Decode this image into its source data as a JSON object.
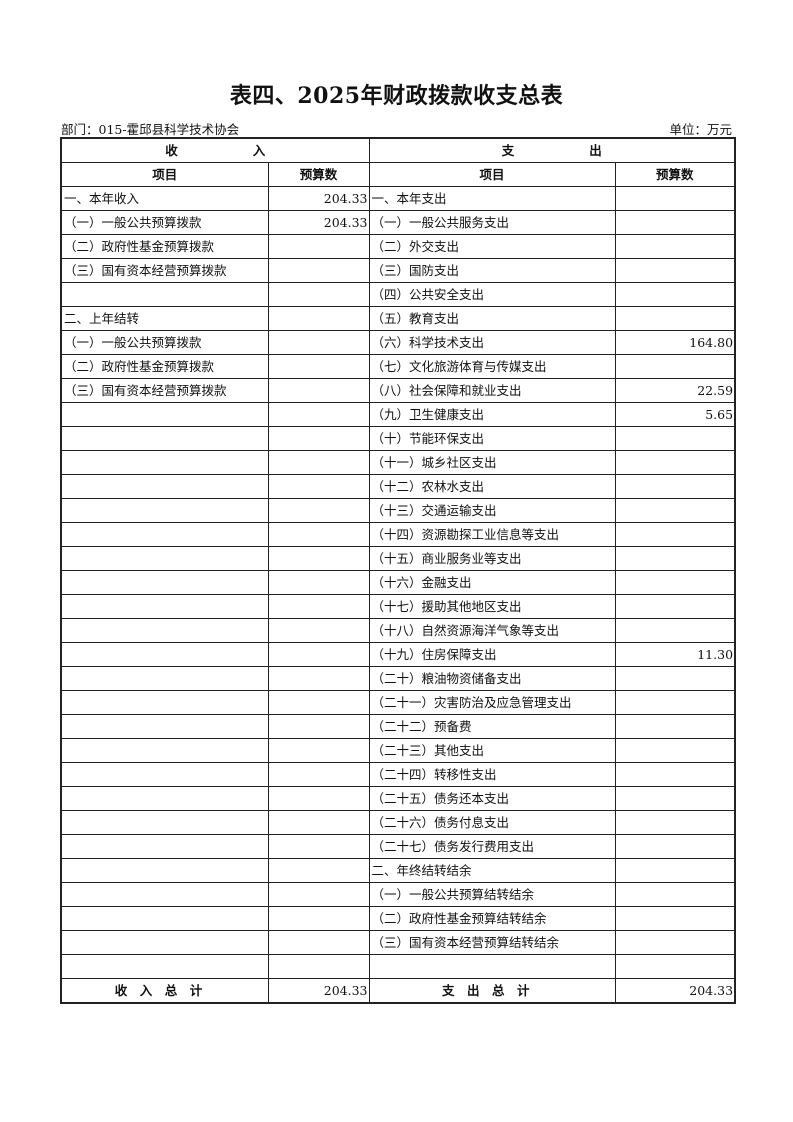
{
  "title": "表四、2025年财政拨款收支总表",
  "department": "部门：015-霍邱县科学技术协会",
  "unit": "单位：万元",
  "header": {
    "income": "收　　　　　　入",
    "expense": "支　　　　　　出",
    "item": "项目",
    "budget": "预算数"
  },
  "rows": [
    {
      "in_item": "一、本年收入",
      "in_val": "204.33",
      "out_item": "一、本年支出",
      "out_val": ""
    },
    {
      "in_item": "（一）一般公共预算拨款",
      "in_val": "204.33",
      "out_item": "（一）一般公共服务支出",
      "out_val": ""
    },
    {
      "in_item": "（二）政府性基金预算拨款",
      "in_val": "",
      "out_item": "（二）外交支出",
      "out_val": ""
    },
    {
      "in_item": "（三）国有资本经营预算拨款",
      "in_val": "",
      "out_item": "（三）国防支出",
      "out_val": ""
    },
    {
      "in_item": "",
      "in_val": "",
      "out_item": "（四）公共安全支出",
      "out_val": ""
    },
    {
      "in_item": "二、上年结转",
      "in_val": "",
      "out_item": "（五）教育支出",
      "out_val": ""
    },
    {
      "in_item": "（一）一般公共预算拨款",
      "in_val": "",
      "out_item": "（六）科学技术支出",
      "out_val": "164.80"
    },
    {
      "in_item": "（二）政府性基金预算拨款",
      "in_val": "",
      "out_item": "（七）文化旅游体育与传媒支出",
      "out_val": ""
    },
    {
      "in_item": "（三）国有资本经营预算拨款",
      "in_val": "",
      "out_item": "（八）社会保障和就业支出",
      "out_val": "22.59"
    },
    {
      "in_item": "",
      "in_val": "",
      "out_item": "（九）卫生健康支出",
      "out_val": "5.65"
    },
    {
      "in_item": "",
      "in_val": "",
      "out_item": "（十）节能环保支出",
      "out_val": ""
    },
    {
      "in_item": "",
      "in_val": "",
      "out_item": "（十一）城乡社区支出",
      "out_val": ""
    },
    {
      "in_item": "",
      "in_val": "",
      "out_item": "（十二）农林水支出",
      "out_val": ""
    },
    {
      "in_item": "",
      "in_val": "",
      "out_item": "（十三）交通运输支出",
      "out_val": ""
    },
    {
      "in_item": "",
      "in_val": "",
      "out_item": "（十四）资源勘探工业信息等支出",
      "out_val": ""
    },
    {
      "in_item": "",
      "in_val": "",
      "out_item": "（十五）商业服务业等支出",
      "out_val": ""
    },
    {
      "in_item": "",
      "in_val": "",
      "out_item": "（十六）金融支出",
      "out_val": ""
    },
    {
      "in_item": "",
      "in_val": "",
      "out_item": "（十七）援助其他地区支出",
      "out_val": ""
    },
    {
      "in_item": "",
      "in_val": "",
      "out_item": "（十八）自然资源海洋气象等支出",
      "out_val": ""
    },
    {
      "in_item": "",
      "in_val": "",
      "out_item": "（十九）住房保障支出",
      "out_val": "11.30"
    },
    {
      "in_item": "",
      "in_val": "",
      "out_item": "（二十）粮油物资储备支出",
      "out_val": ""
    },
    {
      "in_item": "",
      "in_val": "",
      "out_item": "（二十一）灾害防治及应急管理支出",
      "out_val": ""
    },
    {
      "in_item": "",
      "in_val": "",
      "out_item": "（二十二）预备费",
      "out_val": ""
    },
    {
      "in_item": "",
      "in_val": "",
      "out_item": "（二十三）其他支出",
      "out_val": ""
    },
    {
      "in_item": "",
      "in_val": "",
      "out_item": "（二十四）转移性支出",
      "out_val": ""
    },
    {
      "in_item": "",
      "in_val": "",
      "out_item": "（二十五）债务还本支出",
      "out_val": ""
    },
    {
      "in_item": "",
      "in_val": "",
      "out_item": "（二十六）债务付息支出",
      "out_val": ""
    },
    {
      "in_item": "",
      "in_val": "",
      "out_item": "（二十七）债务发行费用支出",
      "out_val": ""
    },
    {
      "in_item": "",
      "in_val": "",
      "out_item": "二、年终结转结余",
      "out_val": ""
    },
    {
      "in_item": "",
      "in_val": "",
      "out_item": "（一）一般公共预算结转结余",
      "out_val": ""
    },
    {
      "in_item": "",
      "in_val": "",
      "out_item": "（二）政府性基金预算结转结余",
      "out_val": ""
    },
    {
      "in_item": "",
      "in_val": "",
      "out_item": "（三）国有资本经营预算结转结余",
      "out_val": ""
    },
    {
      "in_item": "",
      "in_val": "",
      "out_item": "",
      "out_val": ""
    }
  ],
  "totals": {
    "income_label": "收入总计",
    "income_value": "204.33",
    "expense_label": "支出总计",
    "expense_value": "204.33"
  }
}
